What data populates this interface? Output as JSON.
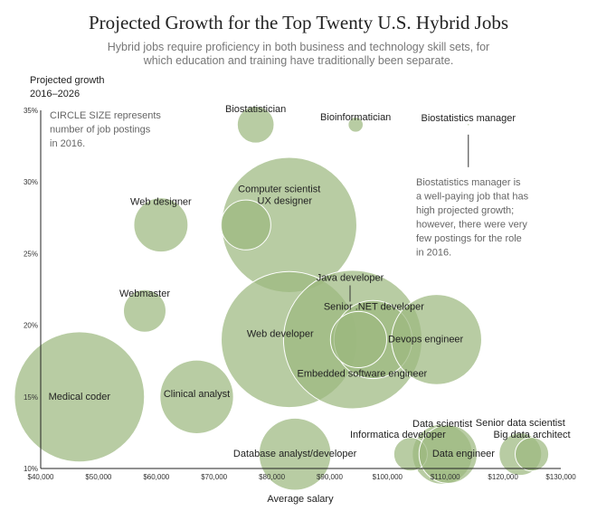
{
  "header": {
    "title": "Projected Growth for the Top Twenty U.S. Hybrid Jobs",
    "subtitle_line1": "Hybrid jobs require proficiency in both business and technology skill sets, for",
    "subtitle_line2": "which education and training have traditionally been separate."
  },
  "chart_data": {
    "type": "scatter",
    "title": "Projected Growth for the Top Twenty U.S. Hybrid Jobs",
    "xlabel": "Average salary",
    "ylabel_line1": "Projected growth",
    "ylabel_line2": "2016–2026",
    "xlim": [
      40000,
      130000
    ],
    "ylim": [
      10,
      35
    ],
    "x_ticks": [
      40000,
      50000,
      60000,
      70000,
      80000,
      90000,
      100000,
      110000,
      120000,
      130000
    ],
    "x_tick_labels": [
      "$40,000",
      "$50,000",
      "$60,000",
      "$70,000",
      "$80,000",
      "$90,000",
      "$100,000",
      "$110,000",
      "$120,000",
      "$130,000"
    ],
    "y_ticks": [
      10,
      15,
      20,
      25,
      30,
      35
    ],
    "y_tick_labels": [
      "10%",
      "15%",
      "20%",
      "25%",
      "30%",
      "35%"
    ],
    "size_encoding": "number of job postings in 2016",
    "bubble_color": "#9cb87f",
    "bubble_outline": "#ffffff",
    "points": [
      {
        "label": "Medical coder",
        "x": 46700,
        "y": 15,
        "size": 75
      },
      {
        "label": "Clinical analyst",
        "x": 67000,
        "y": 15,
        "size": 24
      },
      {
        "label": "Webmaster",
        "x": 58000,
        "y": 21,
        "size": 8
      },
      {
        "label": "Web designer",
        "x": 60800,
        "y": 27,
        "size": 13
      },
      {
        "label": "Biostatistician",
        "x": 77200,
        "y": 34,
        "size": 6
      },
      {
        "label": "Computer scientist",
        "x": 83000,
        "y": 27,
        "size": 81
      },
      {
        "label": "UX designer",
        "x": 75500,
        "y": 27,
        "size": 11
      },
      {
        "label": "Web developer",
        "x": 83000,
        "y": 19,
        "size": 82
      },
      {
        "label": "Database analyst/developer",
        "x": 84000,
        "y": 11,
        "size": 23
      },
      {
        "label": "Bioinformatician",
        "x": 94500,
        "y": 34,
        "size": 1
      },
      {
        "label": "Biostatistics manager",
        "x": 114000,
        "y": 34,
        "size": 0
      },
      {
        "label": "Java developer",
        "x": 94000,
        "y": 19,
        "size": 85
      },
      {
        "label": "Senior .NET developer",
        "x": 97500,
        "y": 19,
        "size": 27
      },
      {
        "label": "Embedded software engineer",
        "x": 95000,
        "y": 19,
        "size": 14
      },
      {
        "label": "Devops engineer",
        "x": 108500,
        "y": 19,
        "size": 36
      },
      {
        "label": "Data scientist",
        "x": 109500,
        "y": 11,
        "size": 16
      },
      {
        "label": "Informatica developer",
        "x": 104000,
        "y": 11,
        "size": 5
      },
      {
        "label": "Data engineer",
        "x": 110500,
        "y": 11,
        "size": 15
      },
      {
        "label": "Senior data scientist",
        "x": 123000,
        "y": 11,
        "size": 8
      },
      {
        "label": "Big data architect",
        "x": 125000,
        "y": 11,
        "size": 5
      }
    ],
    "annotations": [
      {
        "id": "size-note",
        "lines": [
          "CIRCLE SIZE represents",
          "number of job postings",
          "in 2016."
        ]
      },
      {
        "id": "manager-note",
        "lines": [
          "Biostatistics manager is",
          "a well-paying job that has",
          "high projected growth;",
          "however, there were very",
          "few postings for the role",
          "in 2016."
        ]
      }
    ]
  }
}
